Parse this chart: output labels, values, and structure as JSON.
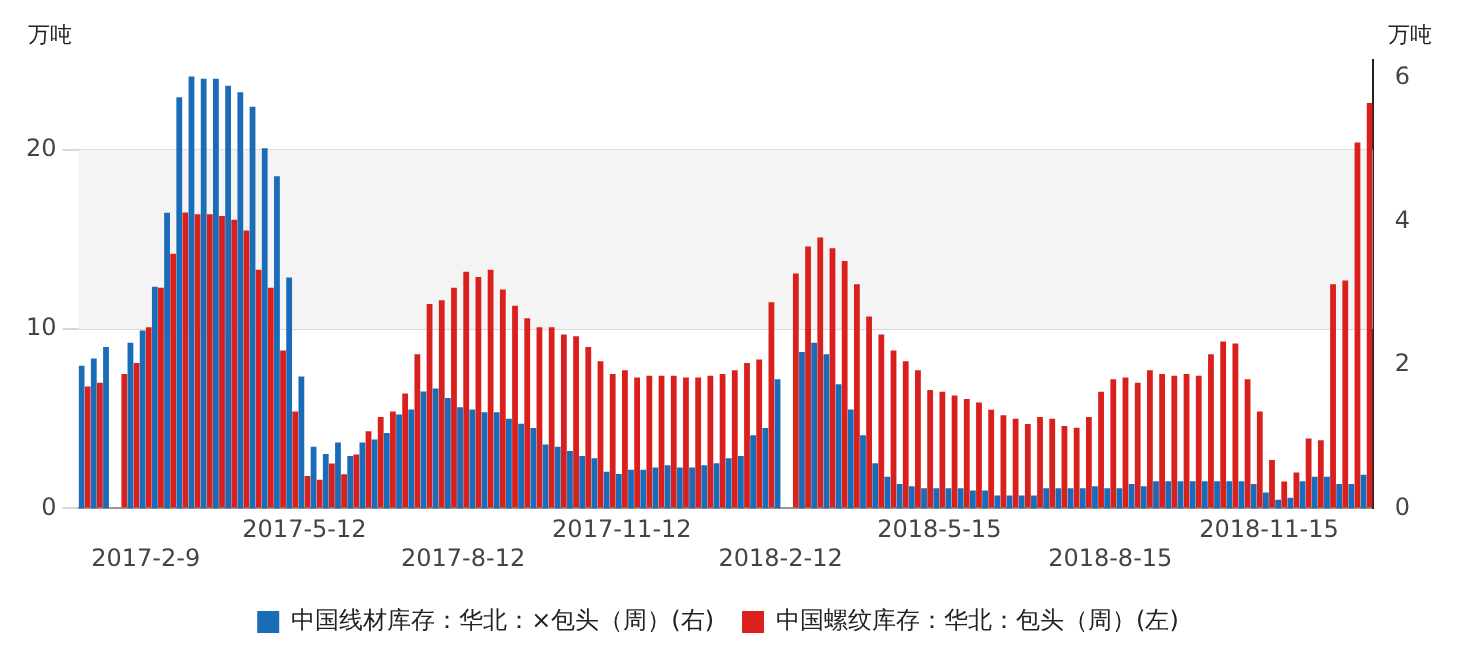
{
  "chart_data": {
    "type": "bar",
    "ylabel": "万吨",
    "y2label": "万吨",
    "categories": [
      null,
      null,
      null,
      null,
      null,
      "2017-2-9",
      null,
      null,
      null,
      null,
      null,
      null,
      null,
      null,
      null,
      null,
      null,
      null,
      "2017-5-12",
      null,
      null,
      null,
      null,
      null,
      null,
      null,
      null,
      null,
      null,
      null,
      null,
      "2017-8-12",
      null,
      null,
      null,
      null,
      null,
      null,
      null,
      null,
      null,
      null,
      null,
      null,
      "2017-11-12",
      null,
      null,
      null,
      null,
      null,
      null,
      null,
      null,
      null,
      null,
      null,
      null,
      "2018-2-12",
      null,
      null,
      null,
      null,
      null,
      null,
      null,
      null,
      null,
      null,
      null,
      null,
      "2018-5-15",
      null,
      null,
      null,
      null,
      null,
      null,
      null,
      null,
      null,
      null,
      null,
      null,
      null,
      "2018-8-15",
      null,
      null,
      null,
      null,
      null,
      null,
      null,
      null,
      null,
      null,
      null,
      null,
      "2018-11-15",
      null,
      null,
      null,
      null,
      null,
      null,
      null,
      null
    ],
    "series": [
      {
        "name": "中国线材库存：华北：×包头（周）(右)",
        "color": "#1a6bb8",
        "axis": "y2",
        "values": [
          1.99,
          2.09,
          2.25,
          null,
          2.31,
          2.48,
          3.09,
          4.12,
          5.73,
          6.02,
          5.99,
          5.99,
          5.89,
          5.8,
          5.6,
          5.02,
          4.63,
          3.22,
          1.84,
          0.86,
          0.76,
          0.92,
          0.73,
          0.92,
          0.96,
          1.05,
          1.31,
          1.38,
          1.63,
          1.67,
          1.54,
          1.41,
          1.38,
          1.34,
          1.34,
          1.25,
          1.18,
          1.12,
          0.89,
          0.86,
          0.8,
          0.73,
          0.7,
          0.51,
          0.48,
          0.54,
          0.54,
          0.57,
          0.6,
          0.57,
          0.57,
          0.6,
          0.63,
          0.7,
          0.73,
          1.02,
          1.12,
          1.8,
          null,
          2.18,
          2.31,
          2.15,
          1.73,
          1.38,
          1.02,
          0.63,
          0.44,
          0.34,
          0.31,
          0.28,
          0.28,
          0.28,
          0.28,
          0.25,
          0.25,
          0.18,
          0.18,
          0.18,
          0.18,
          0.28,
          0.28,
          0.28,
          0.28,
          0.31,
          0.28,
          0.28,
          0.34,
          0.31,
          0.38,
          0.38,
          0.38,
          0.38,
          0.38,
          0.38,
          0.38,
          0.38,
          0.34,
          0.22,
          0.12,
          0.15,
          0.38,
          0.44,
          0.44,
          0.34,
          0.34,
          0.47
        ]
      },
      {
        "name": "中国螺纹库存：华北：包头（周）(左)",
        "color": "#d9201c",
        "values": [
          6.8,
          7.0,
          null,
          7.5,
          8.1,
          10.1,
          12.3,
          14.2,
          16.5,
          16.4,
          16.4,
          16.3,
          16.1,
          15.5,
          13.3,
          12.3,
          8.8,
          5.4,
          1.8,
          1.6,
          2.5,
          1.9,
          3.0,
          4.3,
          5.1,
          5.4,
          6.4,
          8.6,
          11.4,
          11.6,
          12.3,
          13.2,
          12.9,
          13.3,
          12.2,
          11.3,
          10.6,
          10.1,
          10.1,
          9.7,
          9.6,
          9.0,
          8.2,
          7.5,
          7.7,
          7.3,
          7.4,
          7.4,
          7.4,
          7.3,
          7.3,
          7.4,
          7.5,
          7.7,
          8.1,
          8.3,
          11.5,
          null,
          13.1,
          14.6,
          15.1,
          14.5,
          13.8,
          12.5,
          10.7,
          9.7,
          8.8,
          8.2,
          7.7,
          6.6,
          6.5,
          6.3,
          6.1,
          5.9,
          5.5,
          5.2,
          5.0,
          4.7,
          5.1,
          5.0,
          4.6,
          4.5,
          5.1,
          6.5,
          7.2,
          7.3,
          7.0,
          7.7,
          7.5,
          7.4,
          7.5,
          7.4,
          8.6,
          9.3,
          9.2,
          7.2,
          5.4,
          2.7,
          1.5,
          2.0,
          3.9,
          3.8,
          12.5,
          12.7,
          20.4,
          22.6
        ]
      }
    ],
    "ylim": [
      0,
      25
    ],
    "yticks": [
      0,
      10,
      20
    ],
    "y2lim": [
      0,
      6.25
    ],
    "y2ticks": [
      0,
      2,
      4,
      6
    ],
    "grid": "y",
    "legend": "bottom",
    "bands": [
      {
        "axis": "y",
        "from": 10,
        "to": 20,
        "color": "#f4f4f4"
      }
    ]
  }
}
